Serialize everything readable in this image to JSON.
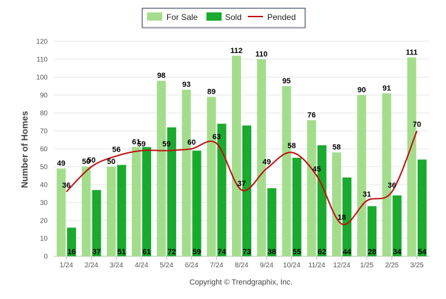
{
  "chart_data": {
    "type": "bar",
    "ylabel": "Number of Homes",
    "xlabel": "",
    "ylim": [
      0,
      120
    ],
    "yticks": [
      0,
      10,
      20,
      30,
      40,
      50,
      60,
      70,
      80,
      90,
      100,
      110,
      120
    ],
    "grid": true,
    "legend_position": "top-center",
    "categories": [
      "1/24",
      "2/24",
      "3/24",
      "4/24",
      "5/24",
      "6/24",
      "7/24",
      "8/24",
      "9/24",
      "10/24",
      "11/24",
      "12/24",
      "1/25",
      "2/25",
      "3/25"
    ],
    "series": [
      {
        "name": "For Sale",
        "type": "bar",
        "color": "#a3dd8c",
        "values": [
          49,
          50,
          50,
          61,
          98,
          93,
          89,
          112,
          110,
          95,
          76,
          58,
          90,
          91,
          111
        ]
      },
      {
        "name": "Sold",
        "type": "bar",
        "color": "#1aaa2e",
        "values": [
          16,
          37,
          51,
          61,
          72,
          59,
          74,
          73,
          38,
          55,
          62,
          44,
          28,
          34,
          54
        ]
      },
      {
        "name": "Pended",
        "type": "line",
        "color": "#c01010",
        "values": [
          36,
          50,
          56,
          59,
          59,
          60,
          63,
          37,
          49,
          58,
          45,
          18,
          31,
          36,
          70
        ]
      }
    ]
  },
  "legend": {
    "items": [
      {
        "label": "For Sale",
        "color": "#a3dd8c",
        "kind": "bar"
      },
      {
        "label": "Sold",
        "color": "#1aaa2e",
        "kind": "bar"
      },
      {
        "label": "Pended",
        "color": "#c01010",
        "kind": "line"
      }
    ]
  },
  "footer": {
    "copyright": "Copyright © Trendgraphix, Inc."
  }
}
